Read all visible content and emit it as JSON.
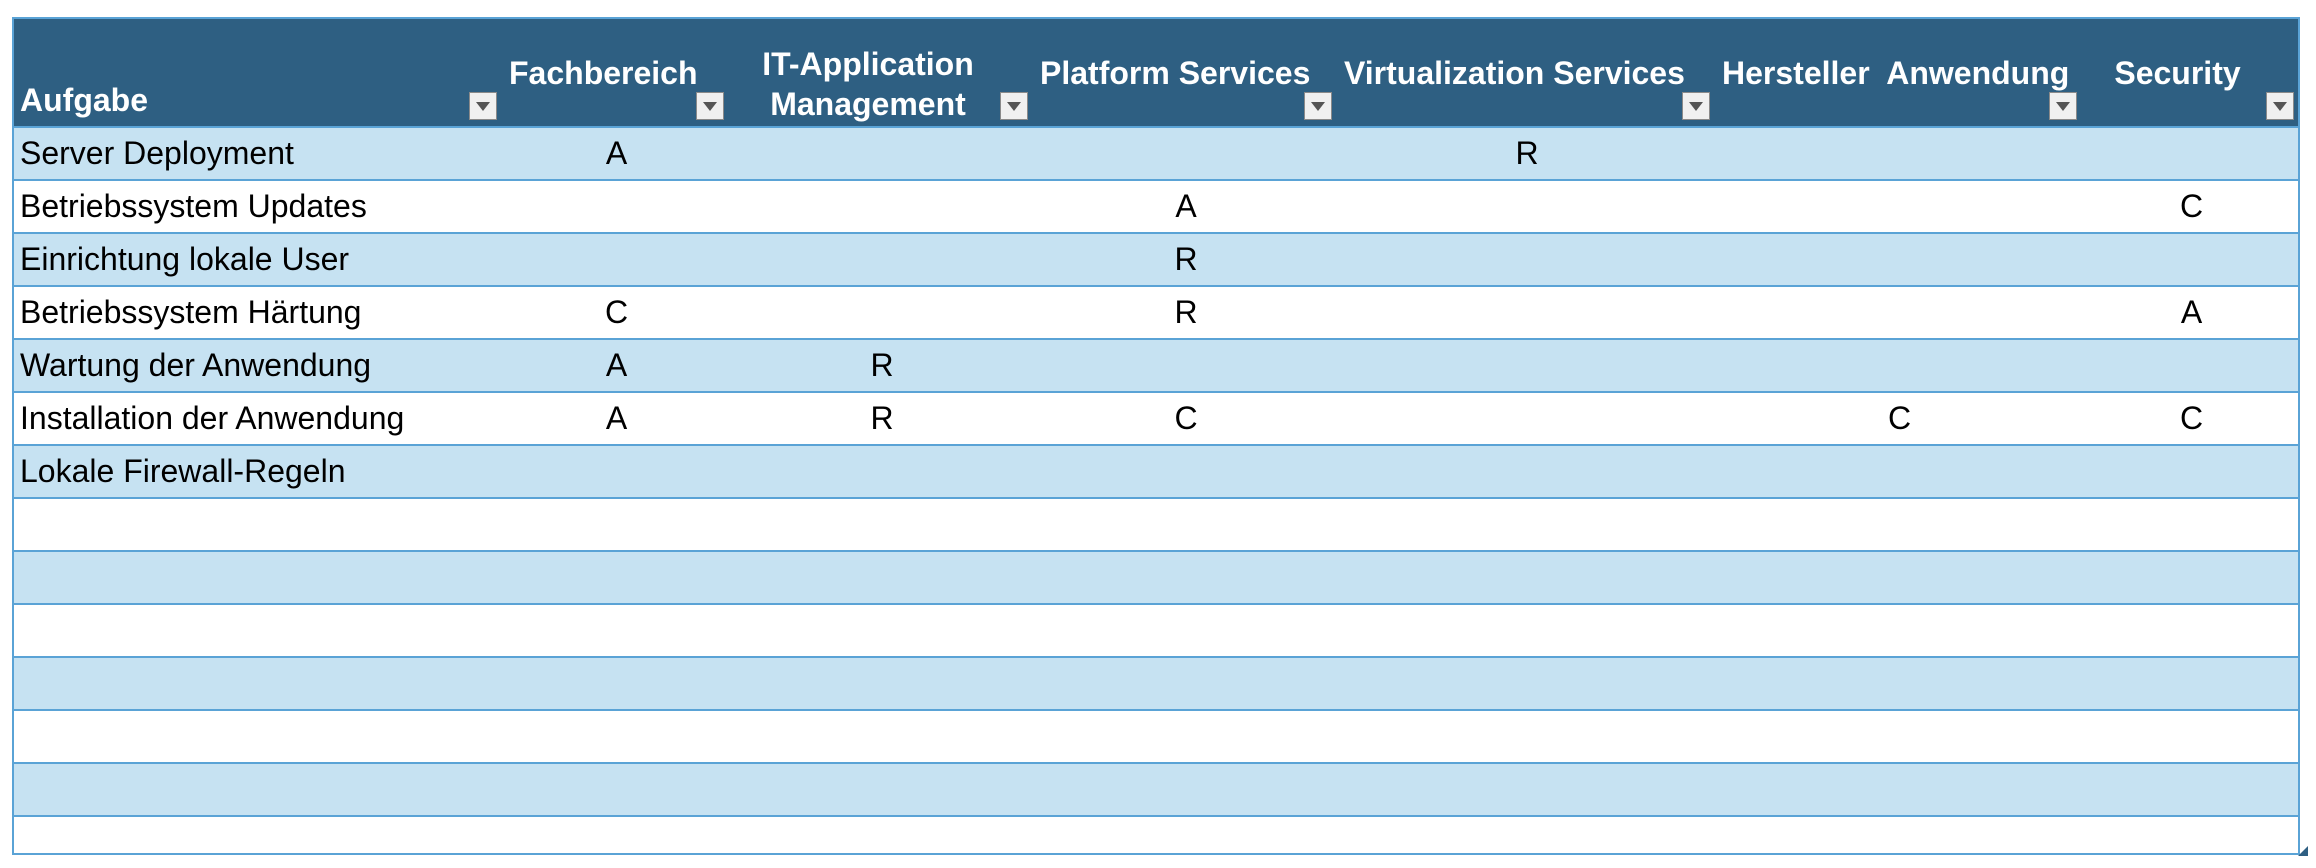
{
  "table": {
    "headers": [
      "Aufgabe",
      "Fachbereich",
      "IT-Application Management",
      "Platform Services",
      "Virtualization Services",
      "Hersteller  Anwendung",
      "Security"
    ],
    "rows": [
      [
        "Server Deployment",
        "A",
        "",
        "",
        "R",
        "",
        ""
      ],
      [
        "Betriebssystem Updates",
        "",
        "",
        "A",
        "",
        "",
        "C"
      ],
      [
        "Einrichtung lokale User",
        "",
        "",
        "R",
        "",
        "",
        ""
      ],
      [
        "Betriebssystem Härtung",
        "C",
        "",
        "R",
        "",
        "",
        "A"
      ],
      [
        "Wartung der Anwendung",
        "A",
        "R",
        "",
        "",
        "",
        ""
      ],
      [
        "Installation der Anwendung",
        "A",
        "R",
        "C",
        "",
        "C",
        "C"
      ],
      [
        "Lokale Firewall-Regeln",
        "",
        "",
        "",
        "",
        "",
        ""
      ],
      [
        "",
        "",
        "",
        "",
        "",
        "",
        ""
      ],
      [
        "",
        "",
        "",
        "",
        "",
        "",
        ""
      ],
      [
        "",
        "",
        "",
        "",
        "",
        "",
        ""
      ],
      [
        "",
        "",
        "",
        "",
        "",
        "",
        ""
      ],
      [
        "",
        "",
        "",
        "",
        "",
        "",
        ""
      ],
      [
        "",
        "",
        "",
        "",
        "",
        "",
        ""
      ],
      [
        "",
        "",
        "",
        "",
        "",
        "",
        ""
      ]
    ]
  },
  "colors": {
    "header_bg": "#2e5f82",
    "band_bg": "#c6e2f2",
    "grid": "#5aa3d6"
  },
  "icons": {
    "filter": "chevron-down-icon"
  }
}
